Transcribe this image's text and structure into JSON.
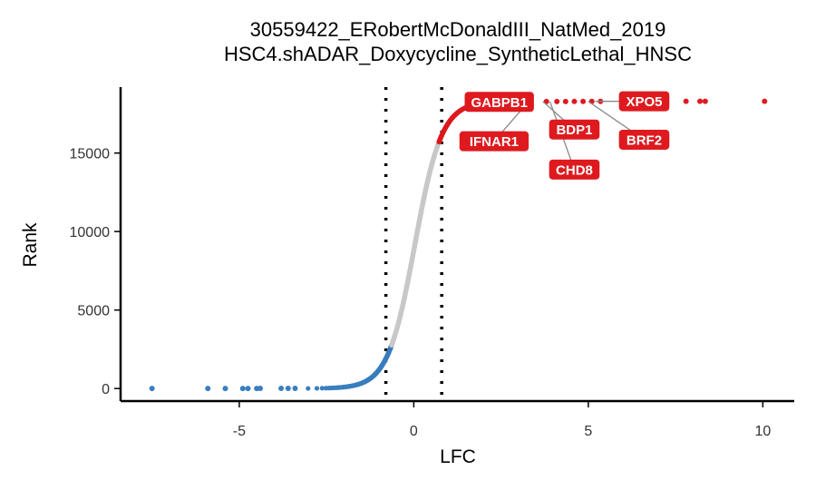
{
  "chart_data": {
    "type": "scatter",
    "title": "30559422_ERobertMcDonaldIII_NatMed_2019",
    "subtitle": "HSC4.shADAR_Doxycycline_SyntheticLethal_HNSC",
    "xlabel": "LFC",
    "ylabel": "Rank",
    "xlim": [
      -8.4,
      10.9
    ],
    "ylim": [
      -800,
      19200
    ],
    "x_ticks": [
      -5,
      0,
      5,
      10
    ],
    "y_ticks": [
      0,
      5000,
      10000,
      15000
    ],
    "x_tick_labels": [
      "-5",
      "0",
      "5",
      "10"
    ],
    "y_tick_labels": [
      "0",
      "5000",
      "10000",
      "15000"
    ],
    "thresholds": [
      -0.8,
      0.8
    ],
    "grid": false,
    "legend": "none",
    "total_genes": 18300,
    "colors": {
      "depleted": "#3a7ebf",
      "neutral": "#c8c8c8",
      "enriched": "#de1a1f",
      "label_bg": "#de1a1f",
      "label_text": "#ffffff",
      "leader": "#888888"
    },
    "curve_params": {
      "center_rank": 8800,
      "lfc_scale": 0.385,
      "depleted_cutoff_rank": 2750,
      "enriched_cutoff_rank": 15700
    },
    "outliers_low": [
      {
        "x": -7.5,
        "y": 0
      },
      {
        "x": -5.9,
        "y": 1
      },
      {
        "x": -5.4,
        "y": 2
      },
      {
        "x": -4.9,
        "y": 3
      },
      {
        "x": -4.75,
        "y": 4
      },
      {
        "x": -4.5,
        "y": 5
      },
      {
        "x": -4.4,
        "y": 6
      },
      {
        "x": -3.8,
        "y": 8
      },
      {
        "x": -3.6,
        "y": 10
      },
      {
        "x": -3.4,
        "y": 12
      }
    ],
    "outliers_high": [
      {
        "x": 3.8,
        "y": 18280
      },
      {
        "x": 4.1,
        "y": 18282
      },
      {
        "x": 4.35,
        "y": 18284
      },
      {
        "x": 4.6,
        "y": 18286
      },
      {
        "x": 4.85,
        "y": 18288
      },
      {
        "x": 5.1,
        "y": 18290
      },
      {
        "x": 5.35,
        "y": 18292
      },
      {
        "x": 6.0,
        "y": 18294
      },
      {
        "x": 7.8,
        "y": 18296
      },
      {
        "x": 8.2,
        "y": 18298
      },
      {
        "x": 8.35,
        "y": 18299
      },
      {
        "x": 10.05,
        "y": 18300
      }
    ],
    "labels": [
      {
        "gene": "GABPB1",
        "x": 2.45,
        "y": 18260,
        "lx": 3.1,
        "ly": 18300
      },
      {
        "gene": "IFNAR1",
        "x": 2.3,
        "y": 15750,
        "lx": 3.3,
        "ly": 18300
      },
      {
        "gene": "BDP1",
        "x": 4.6,
        "y": 16500,
        "lx": 3.7,
        "ly": 18285
      },
      {
        "gene": "CHD8",
        "x": 4.6,
        "y": 13950,
        "lx": 3.9,
        "ly": 18285
      },
      {
        "gene": "XPO5",
        "x": 6.6,
        "y": 18300,
        "lx": 5.2,
        "ly": 18292
      },
      {
        "gene": "BRF2",
        "x": 6.6,
        "y": 15850,
        "lx": 5.0,
        "ly": 18290
      }
    ]
  }
}
